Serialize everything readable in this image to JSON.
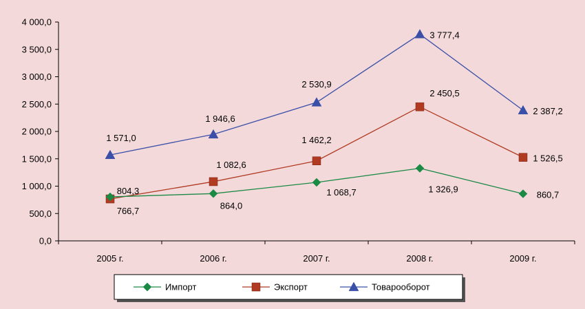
{
  "chart_data": {
    "type": "line",
    "title": "",
    "xlabel": "",
    "ylabel": "",
    "categories": [
      "2005 г.",
      "2006 г.",
      "2007 г.",
      "2008 г.",
      "2009 г."
    ],
    "ylim": [
      0,
      4000
    ],
    "yticks": [
      0,
      500,
      1000,
      1500,
      2000,
      2500,
      3000,
      3500,
      4000
    ],
    "ytick_labels": [
      "0,0",
      "500,0",
      "1 000,0",
      "1 500,0",
      "2 000,0",
      "2 500,0",
      "3 000,0",
      "3 500,0",
      "4 000,0"
    ],
    "grid": false,
    "legend_position": "bottom",
    "series": [
      {
        "name": "Импорт",
        "color": "#1a8a45",
        "marker": "diamond",
        "values": [
          804.3,
          864.0,
          1068.7,
          1326.9,
          860.7
        ],
        "labels": [
          "804,3",
          "864,0",
          "1 068,7",
          "1 326,9",
          "860,7"
        ]
      },
      {
        "name": "Экспорт",
        "color": "#b03a22",
        "marker": "square",
        "values": [
          766.7,
          1082.6,
          1462.2,
          2450.5,
          1526.5
        ],
        "labels": [
          "766,7",
          "1 082,6",
          "1 462,2",
          "2 450,5",
          "1 526,5"
        ]
      },
      {
        "name": "Товарооборот",
        "color": "#3a4fa8",
        "marker": "triangle",
        "values": [
          1571.0,
          1946.6,
          2530.9,
          3777.4,
          2387.2
        ],
        "labels": [
          "1 571,0",
          "1 946,6",
          "2 530,9",
          "3 777,4",
          "2 387,2"
        ]
      }
    ]
  }
}
